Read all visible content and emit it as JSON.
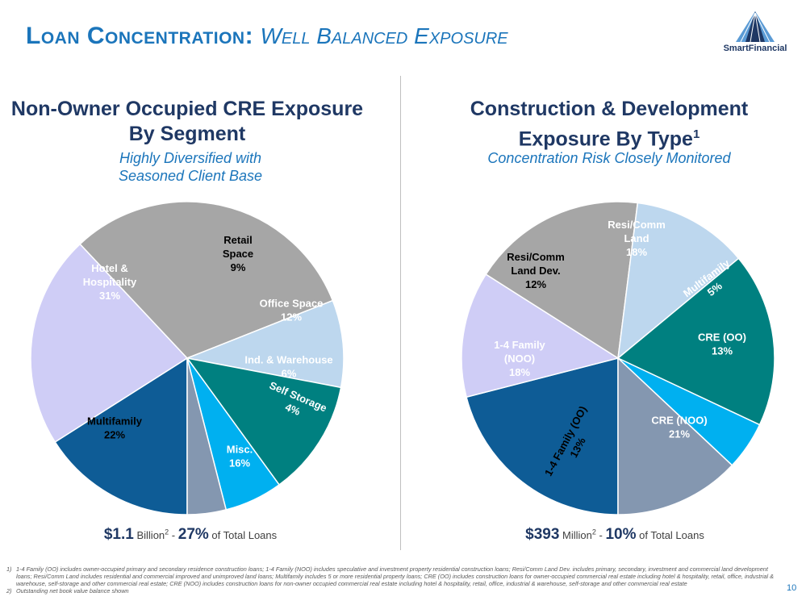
{
  "header": {
    "title_main": "Loan Concentration:",
    "title_sub": "Well Balanced Exposure",
    "logo_text": "SmartFinancial"
  },
  "charts": {
    "left": {
      "title": "Non-Owner Occupied CRE Exposure By Segment",
      "subtitle_line1": "Highly Diversified with",
      "subtitle_line2": "Seasoned Client Base",
      "total_value": "$1.1",
      "total_unit": "Billion",
      "total_unit_note": "2",
      "total_sep": "-",
      "total_pct": "27%",
      "total_suffix": "of Total Loans"
    },
    "right": {
      "title": "Construction & Development Exposure By Type",
      "title_note": "1",
      "subtitle": "Concentration Risk Closely Monitored",
      "total_value": "$393",
      "total_unit": "Million",
      "total_unit_note": "2",
      "total_sep": "-",
      "total_pct": "10%",
      "total_suffix": "of Total Loans"
    }
  },
  "chart_data": [
    {
      "type": "pie",
      "title": "Non-Owner Occupied CRE Exposure By Segment",
      "slices": [
        {
          "label": "Misc.",
          "value": 16,
          "value_label": "16%",
          "color": "#0e5c96",
          "text_color": "#ffffff"
        },
        {
          "label": "Multifamily",
          "value": 22,
          "value_label": "22%",
          "color": "#cfcdf6",
          "text_color": "#000000"
        },
        {
          "label": "Hotel & Hospitality",
          "value": 31,
          "value_label": "31%",
          "color": "#a6a6a6",
          "text_color": "#ffffff"
        },
        {
          "label": "Retail Space",
          "value": 9,
          "value_label": "9%",
          "color": "#bdd7ee",
          "text_color": "#000000"
        },
        {
          "label": "Office Space",
          "value": 12,
          "value_label": "12%",
          "color": "#008080",
          "text_color": "#ffffff"
        },
        {
          "label": "Ind. & Warehouse",
          "value": 6,
          "value_label": "6%",
          "color": "#00b0f0",
          "text_color": "#ffffff"
        },
        {
          "label": "Self Storage",
          "value": 4,
          "value_label": "4%",
          "color": "#8497b0",
          "text_color": "#ffffff"
        }
      ]
    },
    {
      "type": "pie",
      "title": "Construction & Development Exposure By Type",
      "slices": [
        {
          "label": "CRE (NOO)",
          "value": 21,
          "value_label": "21%",
          "color": "#0e5c96",
          "text_color": "#ffffff"
        },
        {
          "label": "1-4 Family (OO)",
          "value": 13,
          "value_label": "13%",
          "color": "#cfcdf6",
          "text_color": "#000000"
        },
        {
          "label": "1-4 Family (NOO)",
          "value": 18,
          "value_label": "18%",
          "color": "#a6a6a6",
          "text_color": "#ffffff"
        },
        {
          "label": "Resi/Comm Land Dev.",
          "value": 12,
          "value_label": "12%",
          "color": "#bdd7ee",
          "text_color": "#000000"
        },
        {
          "label": "Resi/Comm Land",
          "value": 18,
          "value_label": "18%",
          "color": "#008080",
          "text_color": "#ffffff"
        },
        {
          "label": "Multifamily",
          "value": 5,
          "value_label": "5%",
          "color": "#00b0f0",
          "text_color": "#ffffff"
        },
        {
          "label": "CRE (OO)",
          "value": 13,
          "value_label": "13%",
          "color": "#8497b0",
          "text_color": "#ffffff"
        }
      ]
    }
  ],
  "footnotes": [
    {
      "num": "1)",
      "text": "1-4 Family (OO) includes owner-occupied primary and secondary residence construction loans; 1-4 Family (NOO) includes speculative and investment property residential construction loans; Resi/Comm Land Dev. includes primary, secondary, investment and commercial land development loans; Resi/Comm Land includes residential and commercial improved and unimproved land loans; Multifamily includes 5 or more residential property loans; CRE (OO) includes construction loans for owner-occupied commercial real estate including hotel & hospitality, retail, office, industrial & warehouse, self-storage and other commercial real estate; CRE (NOO) includes construction loans for non-owner occupied commercial real estate including hotel & hospitality, retail, office, industrial & warehouse, self-storage and other commercial real estate"
    },
    {
      "num": "2)",
      "text": "Outstanding net book value balance shown"
    }
  ],
  "page_number": "10"
}
